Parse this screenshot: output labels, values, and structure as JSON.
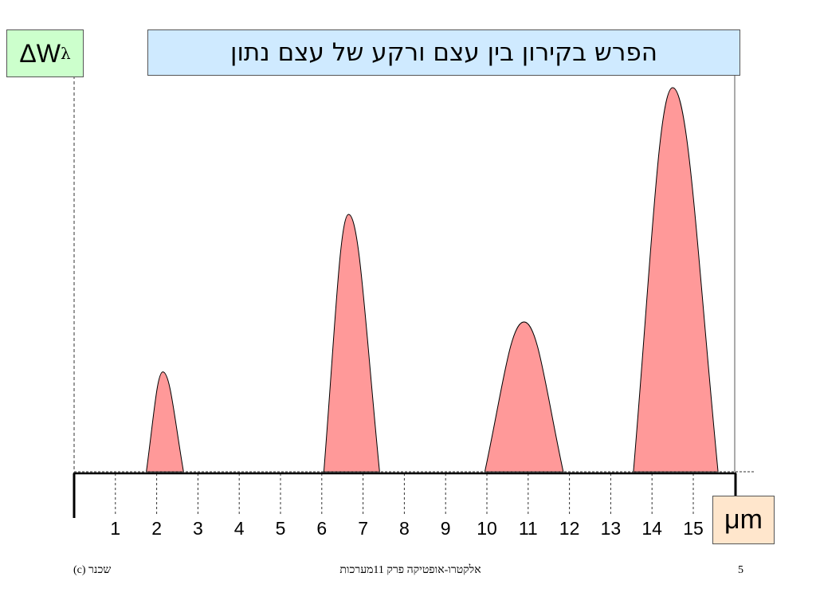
{
  "chart_data": {
    "type": "area",
    "title": "הפרש בקירון בין עצם ורקע של עצם נתון",
    "ylabel_main": "ΔW",
    "ylabel_sub": "λ",
    "xlabel": "μm",
    "x_ticks": [
      1,
      2,
      3,
      4,
      5,
      6,
      7,
      8,
      9,
      10,
      11,
      12,
      13,
      14,
      15
    ],
    "xlim": [
      0,
      16
    ],
    "peaks": [
      {
        "start": 1.75,
        "peak_x": 2.15,
        "end": 2.65,
        "height": 0.26
      },
      {
        "start": 6.05,
        "peak_x": 6.65,
        "end": 7.4,
        "height": 0.67
      },
      {
        "start": 9.95,
        "peak_x": 10.9,
        "end": 11.85,
        "height": 0.39
      },
      {
        "start": 13.55,
        "peak_x": 14.5,
        "end": 15.6,
        "height": 1.0
      }
    ],
    "fill_color": "#ff9999"
  },
  "footer": {
    "left": "שכנר (c)",
    "center": "אלקטרו-אופטיקה פרק  11מערכות",
    "page": "5"
  }
}
